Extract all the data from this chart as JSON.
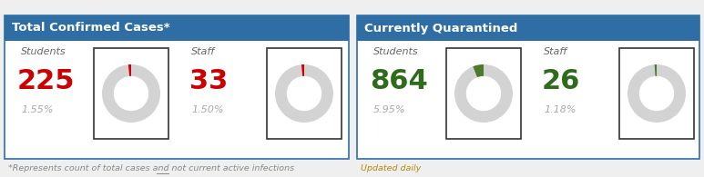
{
  "panel1_title": "Total Confirmed Cases*",
  "panel2_title": "Currently Quarantined",
  "panel1_footer": "*Represents count of total cases and ",
  "panel1_footer_underline": "not",
  "panel1_footer_end": " current active infections",
  "panel2_footer": "Updated daily",
  "header_bg": "#2F6EA5",
  "header_text_color": "#FFFFFF",
  "panel_bg": "#FFFFFF",
  "panel_border": "#2F6EA5",
  "donut_bg": "#D3D3D3",
  "donut_red": "#CC0000",
  "donut_green": "#4A7A2A",
  "number_red": "#CC0000",
  "number_green": "#2E6B1A",
  "label_color": "#666666",
  "pct_color": "#AAAAAA",
  "footer_color": "#888888",
  "students1_label": "Students",
  "students1_value": "225",
  "students1_pct": "1.55%",
  "students1_donut_pct": 1.55,
  "staff1_label": "Staff",
  "staff1_value": "33",
  "staff1_pct": "1.50%",
  "staff1_donut_pct": 1.5,
  "students2_label": "Students",
  "students2_value": "864",
  "students2_pct": "5.95%",
  "students2_donut_pct": 5.95,
  "staff2_label": "Staff",
  "staff2_value": "26",
  "staff2_pct": "1.18%",
  "staff2_donut_pct": 1.18
}
